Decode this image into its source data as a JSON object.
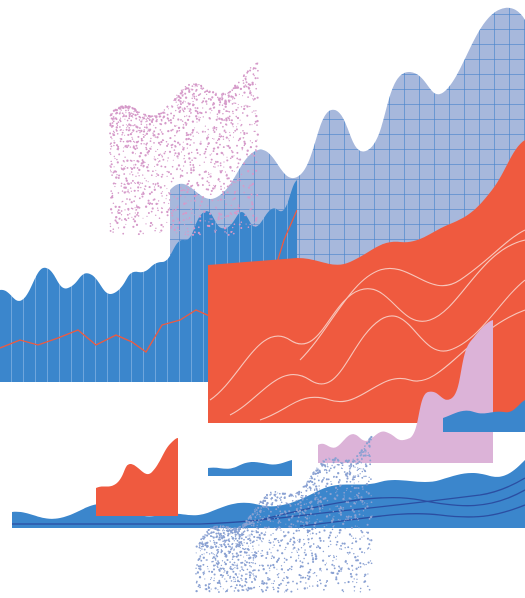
{
  "illustration": {
    "palette": {
      "blue": "#3b86cc",
      "light_blue": "#a7b8dc",
      "grid_line": "#4b86cc",
      "red": "#ef5a3f",
      "pink": "#dcb3d8",
      "speckle_pink": "#d59ac9",
      "speckle_blue": "#8aa1d2",
      "navy": "#2b4ea2",
      "white": "#ffffff"
    },
    "elements": [
      "gridded-area-chart",
      "striped-area-chart",
      "red-area-chart",
      "pink-area-chart",
      "speckle-pink-chart",
      "speckle-blue-chart",
      "bottom-wave-chart",
      "small-red-area",
      "small-blue-wave",
      "right-blue-wave"
    ]
  }
}
